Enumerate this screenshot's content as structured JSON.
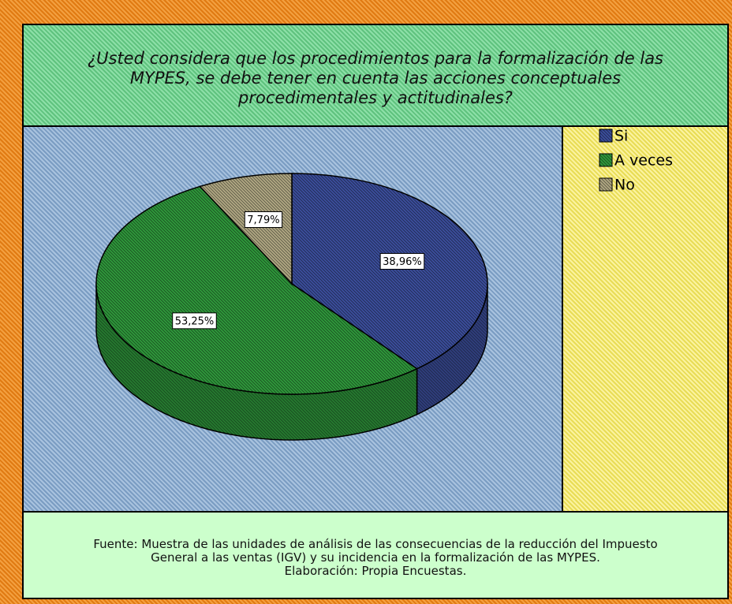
{
  "chart_data": {
    "type": "pie3d",
    "title": [
      "¿Usted considera que los procedimientos para la formalización de las",
      "MYPES, se debe tener  en cuenta las acciones conceptuales",
      "procedimentales y actitudinales?"
    ],
    "categories": [
      "Si",
      "A veces",
      "No"
    ],
    "values": [
      38.96,
      53.25,
      7.79
    ],
    "value_labels": [
      "38,96%",
      "53,25%",
      "7,79%"
    ],
    "colors": [
      "#3c4f9e",
      "#2f9a3c",
      "#b3aa85"
    ],
    "note": [
      "Fuente: Muestra de las unidades de análisis de las consecuencias de la reducción del Impuesto",
      "General a las ventas (IGV) y su incidencia en la formalización de las MYPES.",
      "Elaboración: Propia Encuestas."
    ]
  }
}
